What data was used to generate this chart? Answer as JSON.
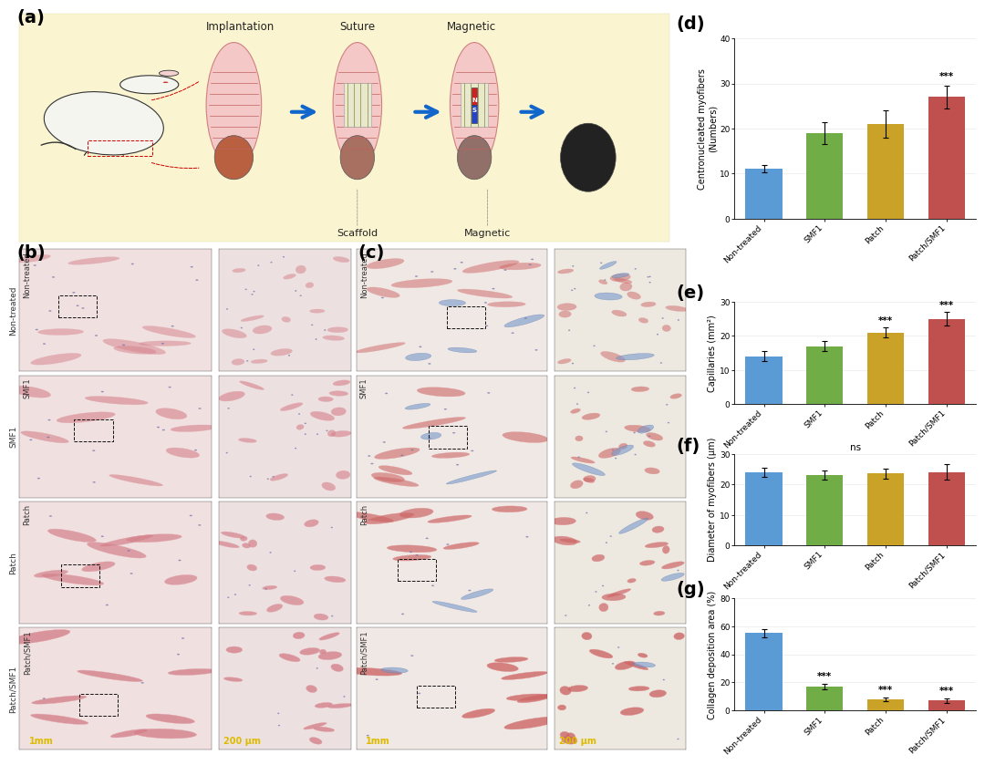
{
  "categories": [
    "Non-treated",
    "SMF1",
    "Patch",
    "Patch/SMF1"
  ],
  "bar_colors": [
    "#5b9bd5",
    "#70ad47",
    "#c9a227",
    "#c0504d"
  ],
  "panel_d": {
    "values": [
      11,
      19,
      21,
      27
    ],
    "errors": [
      0.8,
      2.5,
      3.0,
      2.5
    ],
    "ylabel": "Centronucleated myofibers\n(Numbers)",
    "ylim": [
      0,
      40
    ],
    "yticks": [
      0,
      10,
      20,
      30,
      40
    ],
    "significance": [
      "",
      "",
      "",
      "***"
    ]
  },
  "panel_e": {
    "values": [
      14,
      17,
      21,
      25
    ],
    "errors": [
      1.5,
      1.5,
      1.5,
      2.0
    ],
    "ylabel": "Capillaries (mm²)",
    "ylim": [
      0,
      30
    ],
    "yticks": [
      0,
      10,
      20,
      30
    ],
    "significance": [
      "",
      "",
      "***",
      "***"
    ]
  },
  "panel_f": {
    "values": [
      24,
      23,
      23.5,
      24
    ],
    "errors": [
      1.5,
      1.5,
      1.5,
      2.5
    ],
    "ylabel": "Diameter of myofibers (μm)",
    "ylim": [
      0,
      30
    ],
    "yticks": [
      0,
      10,
      20,
      30
    ],
    "significance": [],
    "ns_line": true
  },
  "panel_g": {
    "values": [
      55,
      17,
      8,
      7
    ],
    "errors": [
      3.0,
      2.0,
      1.5,
      1.5
    ],
    "ylabel": "Collagen deposition area (%)",
    "ylim": [
      0,
      80
    ],
    "yticks": [
      0,
      20,
      40,
      60,
      80
    ],
    "significance": [
      "",
      "***",
      "***",
      "***"
    ]
  },
  "panel_labels_right": [
    "(d)",
    "(e)",
    "(f)",
    "(g)"
  ],
  "panel_labels_left": [
    "(a)",
    "(b)",
    "(c)"
  ],
  "label_fontsize": 14,
  "tick_fontsize": 6.5,
  "ylabel_fontsize": 7,
  "bar_width": 0.6,
  "sig_fontsize": 7.5,
  "figure_bg": "#ffffff",
  "row_labels": [
    "Non-treated",
    "SMF1",
    "Patch",
    "Patch/SMF1"
  ],
  "panel_a_bg": "#faf5d0",
  "step_labels": [
    "Implantation",
    "Suture",
    "Magnetic"
  ],
  "scaffold_label": "Scaffold",
  "magnetic_label": "Magnetic"
}
